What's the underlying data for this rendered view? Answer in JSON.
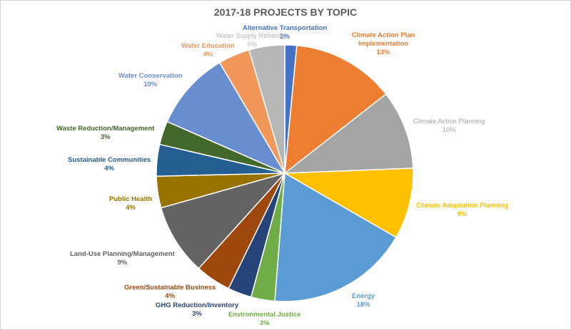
{
  "chart_data": {
    "type": "pie",
    "title": "2017-18 PROJECTS BY TOPIC",
    "slices": [
      {
        "label": "Alternative Transportation",
        "pct_label": "2%",
        "value": 1.5,
        "color": "#4472c4"
      },
      {
        "label": "Climate Action Plan Implementation",
        "pct_label": "13%",
        "value": 13,
        "color": "#ed7d31"
      },
      {
        "label": "Climate Action Planning",
        "pct_label": "10%",
        "value": 10,
        "color": "#a5a5a5"
      },
      {
        "label": "Climate Adaptation Planning",
        "pct_label": "9%",
        "value": 9,
        "color": "#ffc000"
      },
      {
        "label": "Energy",
        "pct_label": "18%",
        "value": 18,
        "color": "#5b9bd5"
      },
      {
        "label": "Environmental Justice",
        "pct_label": "3%",
        "value": 3,
        "color": "#70ad47"
      },
      {
        "label": "GHG Reduction/Inventory",
        "pct_label": "3%",
        "value": 3,
        "color": "#264478"
      },
      {
        "label": "Green/Sustainable Business",
        "pct_label": "4%",
        "value": 4.5,
        "color": "#9e480e"
      },
      {
        "label": "Land-Use Planning/Management",
        "pct_label": "9%",
        "value": 9,
        "color": "#636363"
      },
      {
        "label": "Public Health",
        "pct_label": "4%",
        "value": 4,
        "color": "#997300"
      },
      {
        "label": "Sustainable Communities",
        "pct_label": "4%",
        "value": 4,
        "color": "#255e91"
      },
      {
        "label": "Waste Reduction/Management",
        "pct_label": "3%",
        "value": 3,
        "color": "#43682b"
      },
      {
        "label": "Water Conservation",
        "pct_label": "10%",
        "value": 10,
        "color": "#698ed0"
      },
      {
        "label": "Water Education",
        "pct_label": "4%",
        "value": 4,
        "color": "#f1975a"
      },
      {
        "label": "Water Supply Reliability",
        "pct_label": "4%",
        "value": 4.5,
        "color": "#b7b7b7"
      }
    ]
  }
}
